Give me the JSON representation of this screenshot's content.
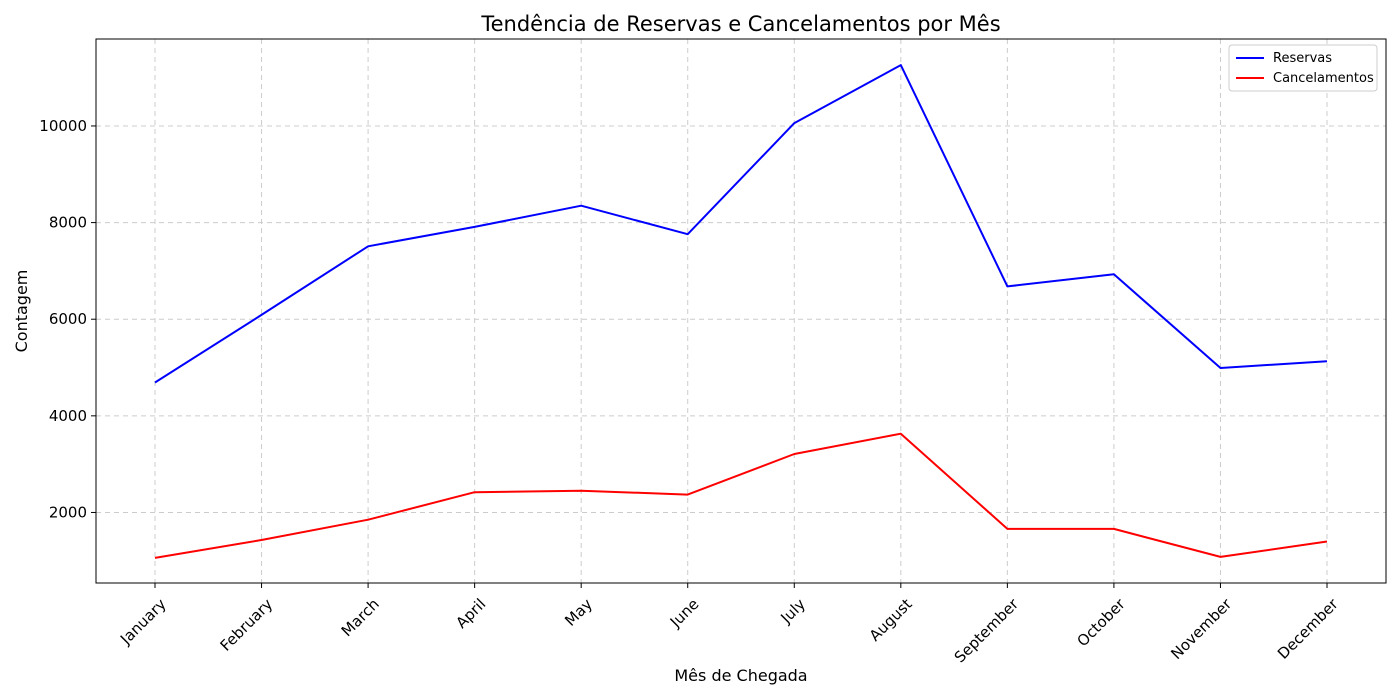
{
  "chart_data": {
    "type": "line",
    "title": "Tendência de Reservas e Cancelamentos por Mês",
    "xlabel": "Mês de Chegada",
    "ylabel": "Contagem",
    "categories": [
      "January",
      "February",
      "March",
      "April",
      "May",
      "June",
      "July",
      "August",
      "September",
      "October",
      "November",
      "December"
    ],
    "series": [
      {
        "name": "Reservas",
        "color": "#0000ff",
        "values": [
          4690,
          6090,
          7510,
          7910,
          8350,
          7760,
          10060,
          11260,
          6680,
          6930,
          4990,
          5130
        ]
      },
      {
        "name": "Cancelamentos",
        "color": "#ff0000",
        "values": [
          1060,
          1430,
          1850,
          2420,
          2450,
          2370,
          3210,
          3630,
          1660,
          1660,
          1080,
          1400
        ]
      }
    ],
    "yticks": [
      2000,
      4000,
      6000,
      8000,
      10000
    ],
    "ylim": [
      540,
      11800
    ],
    "grid": true,
    "legend_position": "top-right"
  }
}
